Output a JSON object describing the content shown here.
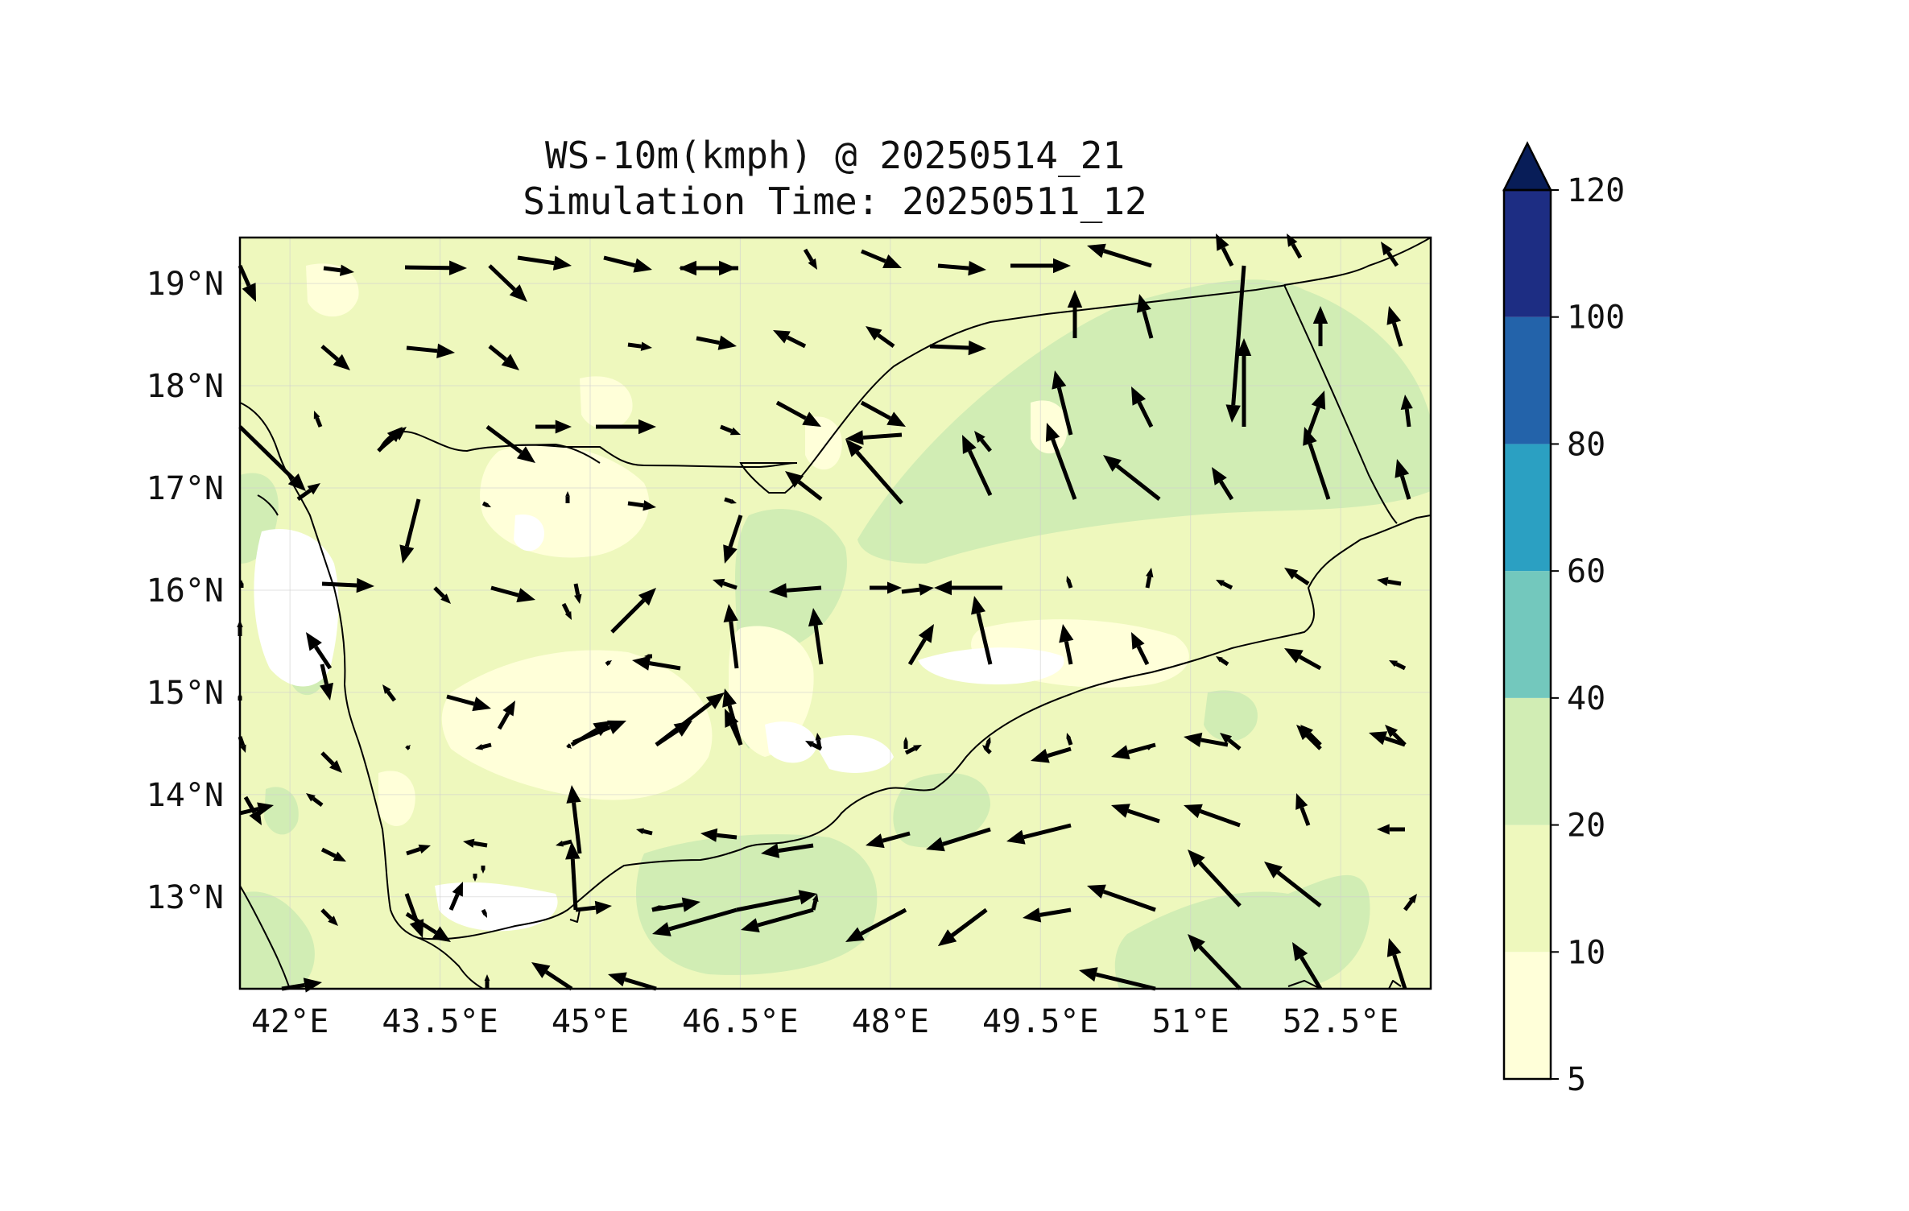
{
  "figure": {
    "title_line1": "WS-10m(kmph) @ 20250514_21",
    "title_line2": "Simulation Time: 20250511_12"
  },
  "map": {
    "lon_range": [
      41.5,
      53.4
    ],
    "lat_range": [
      12.1,
      19.45
    ],
    "lon_ticks": [
      {
        "value": 42,
        "label": "42°E"
      },
      {
        "value": 43.5,
        "label": "43.5°E"
      },
      {
        "value": 45,
        "label": "45°E"
      },
      {
        "value": 46.5,
        "label": "46.5°E"
      },
      {
        "value": 48,
        "label": "48°E"
      },
      {
        "value": 49.5,
        "label": "49.5°E"
      },
      {
        "value": 51,
        "label": "51°E"
      },
      {
        "value": 52.5,
        "label": "52.5°E"
      }
    ],
    "lat_ticks": [
      {
        "value": 19,
        "label": "19°N"
      },
      {
        "value": 18,
        "label": "18°N"
      },
      {
        "value": 17,
        "label": "17°N"
      },
      {
        "value": 16,
        "label": "16°N"
      },
      {
        "value": 15,
        "label": "15°N"
      },
      {
        "value": 14,
        "label": "14°N"
      },
      {
        "value": 13,
        "label": "13°N"
      }
    ],
    "gridlines": true,
    "field_colors": {
      "below_5": "#ffffff",
      "5_10": "#ffffd9",
      "10_20": "#eef8bd",
      "20_40": "#d1edb4"
    }
  },
  "colorbar": {
    "levels": [
      {
        "label": "5",
        "color": "#ffffd9"
      },
      {
        "label": "10",
        "color": "#eef8bd"
      },
      {
        "label": "20",
        "color": "#d1edb4"
      },
      {
        "label": "40",
        "color": "#73c8bd"
      },
      {
        "label": "60",
        "color": "#2ba0c2"
      },
      {
        "label": "80",
        "color": "#2363aa"
      },
      {
        "label": "100",
        "color": "#1d2d83"
      },
      {
        "label": "120",
        "color": ""
      }
    ],
    "extend_color": "#081d58",
    "extend": "max"
  }
}
